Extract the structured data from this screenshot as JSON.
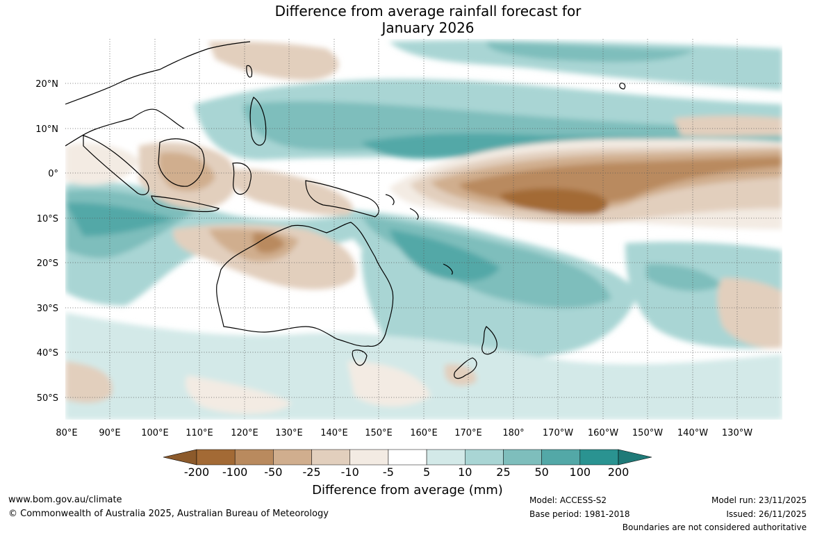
{
  "title": {
    "line1": "Difference from average rainfall forecast for",
    "line2": "January 2026"
  },
  "map": {
    "lat_labels": [
      "20°N",
      "10°N",
      "0°",
      "10°S",
      "20°S",
      "30°S",
      "40°S",
      "50°S"
    ],
    "lon_labels": [
      "80°E",
      "90°E",
      "100°E",
      "110°E",
      "120°E",
      "130°E",
      "140°E",
      "150°E",
      "160°E",
      "170°E",
      "180°",
      "170°W",
      "160°W",
      "150°W",
      "140°W",
      "130°W"
    ],
    "colors": {
      "brown_200": "#a36a35",
      "brown_100": "#b98a5e",
      "brown_50": "#d0ae8e",
      "brown_25": "#e2cfbd",
      "brown_10": "#f3ebe3",
      "neutral": "#ffffff",
      "teal_10": "#d3e9e8",
      "teal_25": "#a9d5d4",
      "teal_50": "#7ebebc",
      "teal_100": "#53a8a7",
      "teal_200": "#2a9391",
      "land_outline": "#000000",
      "gridline": "#555555"
    }
  },
  "colorbar": {
    "ticks": [
      "-200",
      "-100",
      "-50",
      "-25",
      "-10",
      "-5",
      "5",
      "10",
      "25",
      "50",
      "100",
      "200"
    ],
    "colors": [
      "#a36a35",
      "#b98a5e",
      "#d0ae8e",
      "#e2cfbd",
      "#f3ebe3",
      "#ffffff",
      "#d3e9e8",
      "#a9d5d4",
      "#7ebebc",
      "#53a8a7",
      "#2a9391"
    ],
    "extend_low_color": "#8c5a2b",
    "extend_high_color": "#1f7a78",
    "label": "Difference from average (mm)"
  },
  "footer": {
    "website": "www.bom.gov.au/climate",
    "copyright": "© Commonwealth of Australia 2025, Australian Bureau of Meteorology",
    "model": "Model: ACCESS-S2",
    "base_period": "Base period: 1981-2018",
    "model_run": "Model run: 23/11/2025",
    "issued": "Issued: 26/11/2025",
    "disclaimer": "Boundaries are not considered authoritative"
  }
}
